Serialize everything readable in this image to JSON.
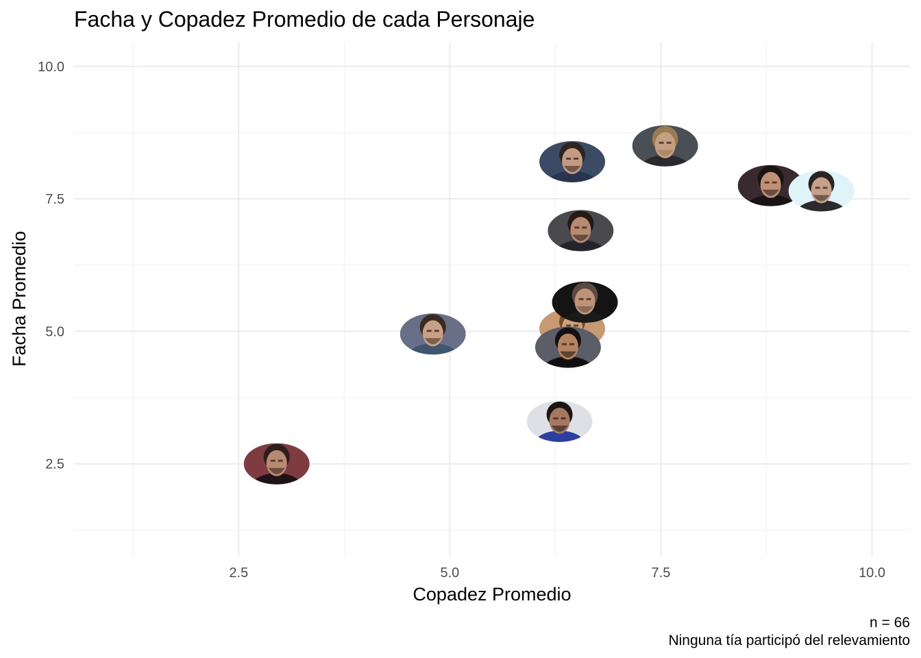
{
  "chart_data": {
    "type": "scatter",
    "title": "Facha y Copadez Promedio de cada Personaje",
    "xlabel": "Copadez Promedio",
    "ylabel": "Facha Promedio",
    "xlim": [
      0.55,
      10.45
    ],
    "ylim": [
      0.75,
      10.45
    ],
    "x_ticks": [
      2.5,
      5.0,
      7.5,
      10.0
    ],
    "x_tick_labels": [
      "2.5",
      "5.0",
      "7.5",
      "10.0"
    ],
    "y_ticks": [
      2.5,
      5.0,
      7.5,
      10.0
    ],
    "y_tick_labels": [
      "2.5",
      "5.0",
      "7.5",
      "10.0"
    ],
    "x_minor": [
      1.25,
      3.75,
      6.25,
      8.75
    ],
    "y_minor": [
      1.25,
      3.75,
      6.25,
      8.75
    ],
    "grid": true,
    "legend": "none",
    "caption": [
      "n = 66",
      "Ninguna tía participó del relevamiento"
    ],
    "points": [
      {
        "x": 2.95,
        "y": 2.5,
        "bg": "#7e3c40",
        "skin": "#b98a72",
        "hair": "#2c1e1c",
        "cloth": "#1e1416"
      },
      {
        "x": 4.8,
        "y": 4.95,
        "bg": "#6a6f88",
        "skin": "#c7a085",
        "hair": "#3a2b22",
        "cloth": "#3f5670"
      },
      {
        "x": 6.3,
        "y": 3.3,
        "bg": "#dfe0e6",
        "skin": "#a67862",
        "hair": "#1c1612",
        "cloth": "#2a3fa0"
      },
      {
        "x": 6.45,
        "y": 8.2,
        "bg": "#3b4b66",
        "skin": "#c49a82",
        "hair": "#2b2420",
        "cloth": "#27354e"
      },
      {
        "x": 6.55,
        "y": 6.9,
        "bg": "#4a4a4e",
        "skin": "#b88a70",
        "hair": "#241a16",
        "cloth": "#23252a"
      },
      {
        "x": 6.45,
        "y": 5.05,
        "bg": "#c79a72",
        "skin": "#d0a07a",
        "hair": "#7a4a2a",
        "cloth": "#a05a30"
      },
      {
        "x": 6.4,
        "y": 4.7,
        "bg": "#5b5e66",
        "skin": "#b5835f",
        "hair": "#121010",
        "cloth": "#111111"
      },
      {
        "x": 6.6,
        "y": 5.55,
        "bg": "#141414",
        "skin": "#c09276",
        "hair": "#5a4a40",
        "cloth": "#1a1a1a"
      },
      {
        "x": 7.55,
        "y": 8.5,
        "bg": "#4a4f56",
        "skin": "#c4a080",
        "hair": "#9a7a50",
        "cloth": "#2a2a2e"
      },
      {
        "x": 8.8,
        "y": 7.75,
        "bg": "#3a2a30",
        "skin": "#c09074",
        "hair": "#1a1412",
        "cloth": "#181414"
      },
      {
        "x": 9.4,
        "y": 7.65,
        "bg": "#dff4f8",
        "skin": "#c8a08a",
        "hair": "#2a2420",
        "cloth": "#2a2a2e"
      }
    ]
  }
}
